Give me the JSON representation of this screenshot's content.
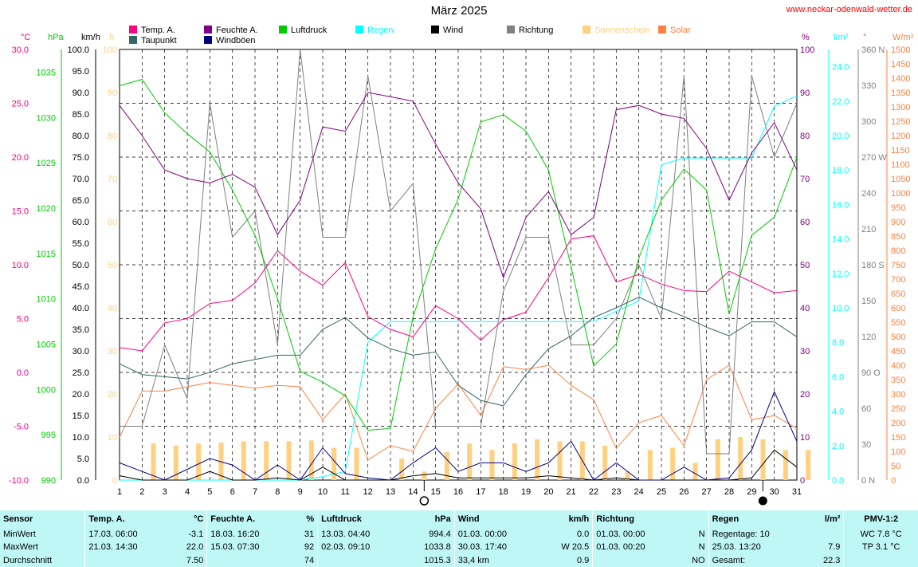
{
  "source": "www.neckar-odenwald-wetter.de",
  "chart_data": {
    "type": "line",
    "title": "März 2025",
    "x": [
      1,
      2,
      3,
      4,
      5,
      6,
      7,
      8,
      9,
      10,
      11,
      12,
      13,
      14,
      15,
      16,
      17,
      18,
      19,
      20,
      21,
      22,
      23,
      24,
      25,
      26,
      27,
      28,
      29,
      30,
      31
    ],
    "xlim": [
      1,
      31
    ],
    "grid": true,
    "legend_position": "top",
    "axes": [
      {
        "key": "temp",
        "unit": "°C",
        "color": "#ff0080",
        "ticks": [
          "30.0",
          "25.0",
          "20.0",
          "15.0",
          "10.0",
          "5.0",
          "0.0",
          "-5.0",
          "-10.0"
        ],
        "ylim": [
          -10,
          30
        ]
      },
      {
        "key": "hpa",
        "unit": "hPa",
        "color": "#00cc00",
        "ticks": [
          "1035",
          "1030",
          "1025",
          "1020",
          "1015",
          "1010",
          "1005",
          "1000",
          "995",
          "990"
        ],
        "ylim": [
          990,
          1037.5
        ]
      },
      {
        "key": "kmh",
        "unit": "km/h",
        "color": "#000000",
        "ticks": [
          "100.0",
          "95.0",
          "90.0",
          "85.0",
          "80.0",
          "75.0",
          "70.0",
          "65.0",
          "60.0",
          "55.0",
          "50.0",
          "45.0",
          "40.0",
          "35.0",
          "30.0",
          "25.0",
          "20.0",
          "15.0",
          "10.0",
          "5.0",
          "0.0"
        ],
        "ylim": [
          0,
          100
        ]
      },
      {
        "key": "h",
        "unit": "h",
        "color": "#ffd080",
        "ticks": [
          "100",
          "90",
          "80",
          "70",
          "60",
          "50",
          "40",
          "30",
          "20",
          "10",
          "0"
        ],
        "ylim": [
          0,
          100
        ]
      },
      {
        "key": "pct",
        "unit": "%",
        "color": "#800080",
        "ticks": [
          "100",
          "90",
          "80",
          "70",
          "60",
          "50",
          "40",
          "30",
          "20",
          "10",
          "0"
        ],
        "ylim": [
          0,
          100
        ]
      },
      {
        "key": "lm2",
        "unit": "l/m²",
        "color": "#00ffff",
        "ticks": [
          "24.0",
          "22.0",
          "20.0",
          "18.0",
          "16.0",
          "14.0",
          "12.0",
          "10.0",
          "8.0",
          "6.0",
          "4.0",
          "2.0",
          "0.0"
        ],
        "ylim": [
          0,
          25
        ]
      },
      {
        "key": "deg",
        "unit": "°",
        "color": "#808080",
        "ticks": [
          "360 N",
          "330",
          "300",
          "270 W",
          "240",
          "210",
          "180 S",
          "150",
          "120",
          "90 O",
          "60",
          "30",
          "0 N"
        ],
        "ylim": [
          0,
          360
        ]
      },
      {
        "key": "wm2",
        "unit": "W/m²",
        "color": "#ff8040",
        "ticks": [
          "1500",
          "1450",
          "1400",
          "1350",
          "1300",
          "1250",
          "1200",
          "1150",
          "1100",
          "1050",
          "1000",
          "950",
          "900",
          "850",
          "800",
          "750",
          "700",
          "650",
          "600",
          "550",
          "500",
          "450",
          "400",
          "350",
          "300",
          "250",
          "200",
          "150",
          "100",
          "50",
          "0"
        ],
        "ylim": [
          0,
          1500
        ]
      }
    ],
    "series": [
      {
        "name": "Temp. A.",
        "color": "#ff0080",
        "axis": "temp",
        "values": [
          2.3,
          2.0,
          4.6,
          5.0,
          6.4,
          6.7,
          8.3,
          11.3,
          9.4,
          8.1,
          10.2,
          5.2,
          4.0,
          3.3,
          6.2,
          5.0,
          3.0,
          4.9,
          5.6,
          8.8,
          12.4,
          12.7,
          8.4,
          9.1,
          8.2,
          7.6,
          7.5,
          9.4,
          8.4,
          7.4,
          7.6
        ]
      },
      {
        "name": "Taupunkt",
        "color": "#336666",
        "axis": "temp",
        "values": [
          0.8,
          -0.2,
          -0.4,
          -0.6,
          0.0,
          0.8,
          1.2,
          1.6,
          1.6,
          4.0,
          5.1,
          3.2,
          2.2,
          1.6,
          1.9,
          -1.2,
          -2.6,
          -3.1,
          -0.2,
          2.2,
          3.4,
          5.1,
          6.0,
          7.0,
          6.0,
          5.2,
          4.2,
          3.4,
          4.7,
          4.7,
          3.3
        ]
      },
      {
        "name": "Feuchte A.",
        "color": "#800080",
        "axis": "pct",
        "values": [
          87,
          80,
          72,
          70,
          69,
          71,
          68,
          57,
          65,
          82,
          81,
          90,
          89,
          88,
          78,
          69,
          63,
          47,
          61,
          67,
          57,
          61,
          86,
          87,
          85,
          84,
          77,
          65,
          76,
          83,
          72
        ]
      },
      {
        "name": "Windböen",
        "color": "#000080",
        "axis": "kmh",
        "values": [
          4.0,
          2.0,
          0.0,
          2.5,
          5.0,
          3.5,
          0.0,
          3.5,
          0.0,
          7.5,
          1.5,
          0.5,
          0.0,
          4.0,
          7.5,
          2.0,
          4.0,
          4.0,
          2.0,
          4.0,
          9.0,
          0.0,
          4.0,
          0.0,
          0.0,
          3.0,
          0.0,
          0.5,
          7.0,
          20.5,
          9.0
        ]
      },
      {
        "name": "Wind",
        "color": "#000000",
        "axis": "kmh",
        "values": [
          1.0,
          0.0,
          0.0,
          0.0,
          2.0,
          0.0,
          0.0,
          0.5,
          0.0,
          3.0,
          0.0,
          0.0,
          0.0,
          1.0,
          1.5,
          0.5,
          0.5,
          0.5,
          0.5,
          1.0,
          0.5,
          0.0,
          0.5,
          0.0,
          0.0,
          0.0,
          0.0,
          0.0,
          0.5,
          7.0,
          3.0
        ]
      },
      {
        "name": "Luftdruck",
        "color": "#00cc00",
        "axis": "hpa",
        "values": [
          1033.5,
          1034.2,
          1030.5,
          1028.2,
          1026.2,
          1022.0,
          1017.0,
          1010.0,
          1002.0,
          1000.8,
          999.3,
          995.5,
          995.7,
          1008.0,
          1015.5,
          1021.0,
          1029.5,
          1030.3,
          1028.5,
          1024.2,
          1013.5,
          1002.6,
          1005.0,
          1014.5,
          1020.9,
          1024.3,
          1022.0,
          1008.3,
          1017.0,
          1019.0,
          1025.6
        ]
      },
      {
        "name": "Regen",
        "color": "#00ffff",
        "axis": "lm2",
        "values": [
          0,
          0,
          0,
          0,
          0,
          0,
          0,
          0,
          0,
          0.2,
          0.5,
          8.0,
          9.2,
          9.2,
          9.2,
          9.2,
          9.2,
          9.2,
          9.2,
          9.2,
          9.2,
          9.2,
          9.8,
          10.4,
          18.3,
          18.7,
          18.7,
          18.7,
          18.7,
          21.7,
          22.3
        ]
      },
      {
        "name": "Richtung",
        "color": "#808080",
        "axis": "deg",
        "values": [
          45,
          45,
          113,
          68,
          315,
          203,
          225,
          113,
          360,
          203,
          203,
          338,
          225,
          248,
          45,
          45,
          45,
          158,
          203,
          203,
          113,
          113,
          135,
          180,
          135,
          338,
          22,
          22,
          338,
          270,
          315
        ]
      },
      {
        "name": "Sonnenschein",
        "color": "#ffd080",
        "axis": "h",
        "values": [
          0,
          8.5,
          8.0,
          8.5,
          8.7,
          9.0,
          9.0,
          9.0,
          9.2,
          7.5,
          7.5,
          0,
          5.0,
          2.0,
          6.5,
          8.5,
          7.0,
          8.5,
          9.5,
          9.0,
          9.0,
          8.0,
          2.0,
          7.0,
          7.5,
          4.0,
          9.5,
          10.0,
          9.5,
          7.0,
          7.0
        ]
      },
      {
        "name": "Solar",
        "color": "#ff8040",
        "axis": "wm2",
        "values": [
          150,
          310,
          310,
          325,
          340,
          330,
          320,
          330,
          325,
          210,
          300,
          70,
          120,
          100,
          250,
          335,
          225,
          395,
          385,
          400,
          330,
          280,
          110,
          200,
          225,
          120,
          350,
          400,
          210,
          225,
          180
        ]
      }
    ],
    "moon_phases": [
      {
        "day": 14,
        "phase": "full"
      },
      {
        "day": 29,
        "phase": "new"
      }
    ]
  },
  "stats": {
    "header": {
      "sensor": "Sensor",
      "temp": "Temp. A.",
      "temp_unit": "°C",
      "feuchte": "Feuchte A.",
      "feuchte_unit": "%",
      "druck": "Luftdruck",
      "druck_unit": "hPa",
      "wind": "Wind",
      "wind_unit": "km/h",
      "richtung": "Richtung",
      "regen": "Regen",
      "regen_unit": "l/m²",
      "pmv": "PMV-1:2"
    },
    "rows": [
      {
        "label": "MinWert",
        "temp_ts": "17.03.  06:00",
        "temp_val": "-3.1",
        "feuchte_ts": "18.03.  16:20",
        "feuchte_val": "31",
        "druck_ts": "13.03.  04:40",
        "druck_val": "994.4",
        "wind_ts": "01.03.  00:00",
        "wind_val": "0.0",
        "richtung_ts": "01.03.  00:00",
        "richtung_val": "N",
        "regen_label": "Regentage: 10",
        "regen_val": "",
        "pmv": "WC 7.8 °C"
      },
      {
        "label": "MaxWert",
        "temp_ts": "21.03.  14:30",
        "temp_val": "22.0",
        "feuchte_ts": "15.03.  07:30",
        "feuchte_val": "92",
        "druck_ts": "02.03.  09:10",
        "druck_val": "1033.8",
        "wind_ts": "30.03.  17:40",
        "wind_val": "W 20.5",
        "richtung_ts": "01.03.  00:20",
        "richtung_val": "N",
        "regen_label": "25.03.  13:20",
        "regen_val": "7.9",
        "pmv": "TP 3.1 °C"
      },
      {
        "label": "Durchschnitt",
        "temp_ts": "",
        "temp_val": "7.50",
        "feuchte_ts": "",
        "feuchte_val": "74",
        "druck_ts": "",
        "druck_val": "1015.3",
        "wind_ts": "33,4 km",
        "wind_val": "0.9",
        "richtung_ts": "",
        "richtung_val": "NO",
        "regen_label": "Gesamt:",
        "regen_val": "22.3",
        "pmv": ""
      }
    ]
  }
}
